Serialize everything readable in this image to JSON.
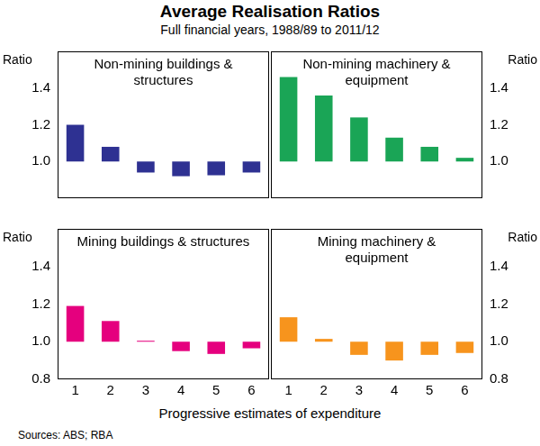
{
  "title": "Average Realisation Ratios",
  "subtitle": "Full financial years, 1988/89 to 2011/12",
  "xlabel": "Progressive estimates of expenditure",
  "note": "Sources: ABS; RBA",
  "chart_data": [
    {
      "type": "bar",
      "title": "Non-mining buildings & structures",
      "ylabel": "Ratio",
      "categories": [
        "1",
        "2",
        "3",
        "4",
        "5",
        "6"
      ],
      "values": [
        1.2,
        1.08,
        0.94,
        0.92,
        0.925,
        0.94
      ],
      "baseline": 1,
      "color": "#2e3192",
      "ylim": [
        0.8,
        1.6
      ],
      "yticks": [
        {
          "value": 1,
          "label": "1.0"
        },
        1.2,
        1.4
      ],
      "grid": false,
      "tick_labels": "y"
    },
    {
      "type": "bar",
      "title": "Non-mining machinery & equipment",
      "ylabel": "Ratio",
      "categories": [
        "1",
        "2",
        "3",
        "4",
        "5",
        "6"
      ],
      "values": [
        1.46,
        1.36,
        1.24,
        1.13,
        1.08,
        1.02
      ],
      "baseline": 1,
      "color": "#1aa556",
      "ylim": [
        0.8,
        1.6
      ],
      "yticks": [
        {
          "value": 1,
          "label": "1.0"
        },
        1.2,
        1.4
      ],
      "grid": false,
      "tick_labels": "y"
    },
    {
      "type": "bar",
      "title": "Mining buildings & structures",
      "ylabel": "Ratio",
      "categories": [
        "1",
        "2",
        "3",
        "4",
        "5",
        "6"
      ],
      "values": [
        1.19,
        1.11,
        1.005,
        0.95,
        0.935,
        0.965
      ],
      "baseline": 1,
      "color": "#e5007e",
      "ylim": [
        0.8,
        1.6
      ],
      "yticks": [
        0.8,
        {
          "value": 1,
          "label": "1.0"
        },
        1.2,
        1.4
      ],
      "grid": false,
      "tick_labels": true
    },
    {
      "type": "bar",
      "title": "Mining machinery & equipment",
      "ylabel": "Ratio",
      "categories": [
        "1",
        "2",
        "3",
        "4",
        "5",
        "6"
      ],
      "values": [
        1.13,
        1.015,
        0.93,
        0.9,
        0.93,
        0.94
      ],
      "baseline": 1,
      "color": "#f7941d",
      "ylim": [
        0.8,
        1.6
      ],
      "yticks": [
        0.8,
        {
          "value": 1,
          "label": "1.0"
        },
        1.2,
        1.4
      ],
      "grid": false,
      "tick_labels": true
    }
  ]
}
